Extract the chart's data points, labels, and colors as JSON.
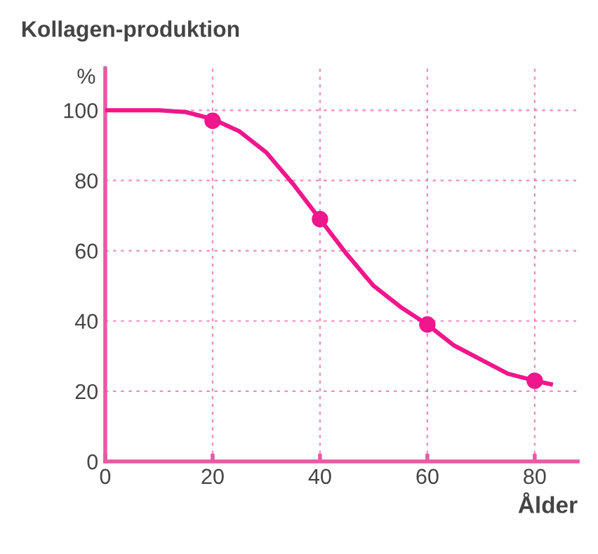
{
  "chart_data": {
    "type": "line",
    "title": "Kollagen-produktion",
    "ylabel": "%",
    "xlabel": "Ålder",
    "series": [
      {
        "color": "#f0168c",
        "marker": "none",
        "x": [
          0,
          5,
          10,
          15,
          20,
          25,
          30,
          35,
          40,
          45,
          50,
          55,
          60,
          65,
          70,
          75,
          80,
          83
        ],
        "values": [
          100,
          100,
          100,
          99.5,
          97.5,
          94,
          88,
          79,
          69,
          59,
          50,
          44,
          39,
          33,
          29,
          25,
          23,
          22
        ]
      },
      {
        "type": "scatter",
        "color": "#f0168c",
        "marker": "circle",
        "x": [
          20,
          40,
          60,
          80
        ],
        "values": [
          97,
          69,
          39,
          23
        ]
      }
    ],
    "xlim": [
      0,
      88
    ],
    "ylim": [
      0,
      112
    ],
    "xticks": [
      0,
      20,
      40,
      60,
      80
    ],
    "yticks": [
      0,
      20,
      40,
      60,
      80,
      100
    ],
    "grid": true,
    "line_style": "solid",
    "legend": false
  }
}
